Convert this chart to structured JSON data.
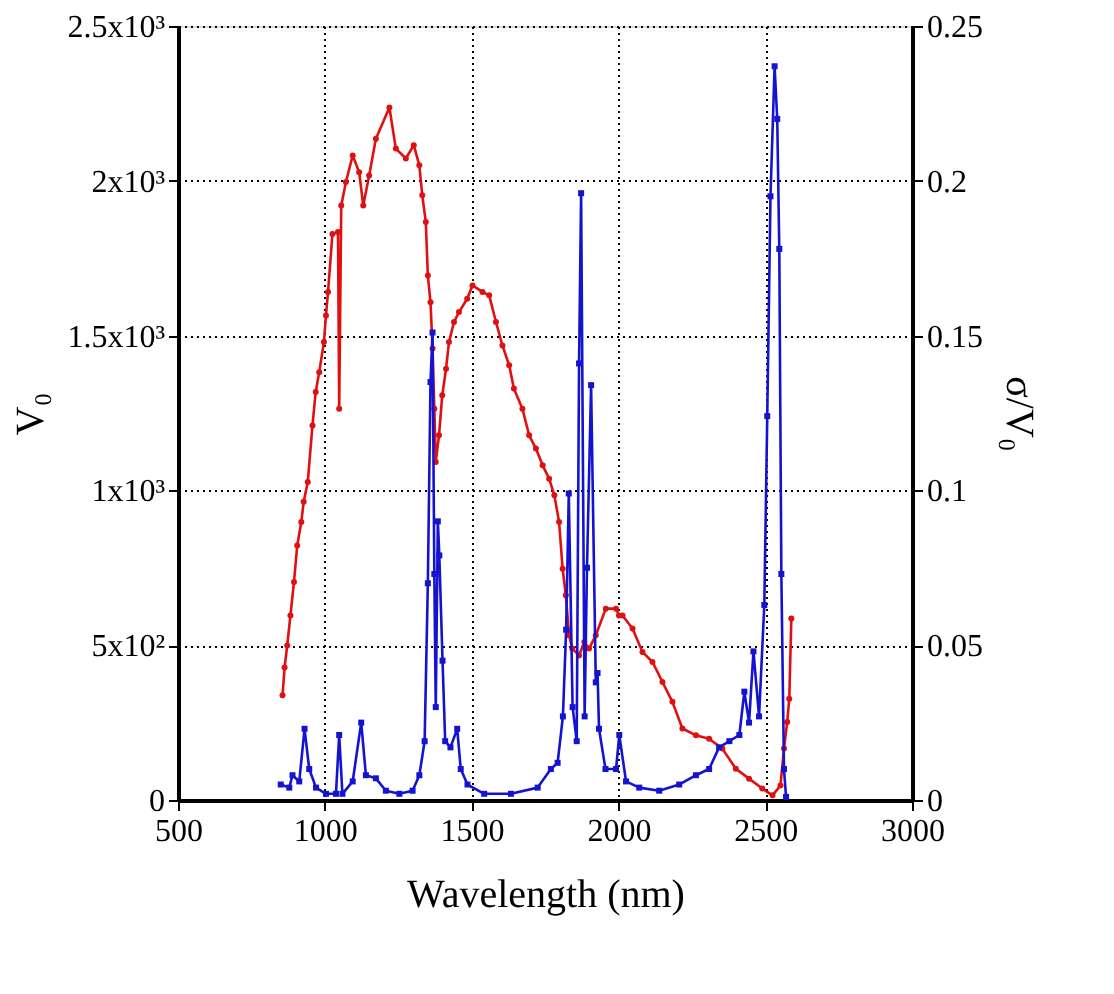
{
  "chart_data": {
    "type": "line",
    "xlabel": "Wavelength (nm)",
    "ylabel": "V₀",
    "y2label": "σ/V₀",
    "xlim": [
      500,
      3000
    ],
    "xticks": [
      500,
      1000,
      1500,
      2000,
      2500,
      3000
    ],
    "ylim": [
      0,
      2500
    ],
    "yticks": [
      {
        "value": 0,
        "label": "0"
      },
      {
        "value": 500,
        "label": "5x10²"
      },
      {
        "value": 1000,
        "label": "1x10³"
      },
      {
        "value": 1500,
        "label": "1.5x10³"
      },
      {
        "value": 2000,
        "label": "2x10³"
      },
      {
        "value": 2500,
        "label": "2.5x10³"
      }
    ],
    "y2lim": [
      0,
      0.25
    ],
    "y2ticks": [
      0,
      0.05,
      0.1,
      0.15,
      0.2,
      0.25
    ],
    "grid": true,
    "line_style": "solid",
    "series": [
      {
        "color": "#e01010",
        "marker": "circle",
        "x": [
          856,
          863,
          872,
          883,
          895,
          906,
          920,
          928,
          942,
          958,
          969,
          981,
          997,
          1004,
          1011,
          1026,
          1045,
          1049,
          1056,
          1072,
          1095,
          1117,
          1131,
          1151,
          1174,
          1220,
          1242,
          1276,
          1303,
          1322,
          1332,
          1344,
          1351,
          1360,
          1367,
          1373,
          1378,
          1389,
          1400,
          1413,
          1423,
          1440,
          1457,
          1485,
          1503,
          1537,
          1560,
          1583,
          1605,
          1628,
          1644,
          1673,
          1696,
          1719,
          1742,
          1764,
          1782,
          1798,
          1810,
          1821,
          1832,
          1843,
          1866,
          1884,
          1900,
          1923,
          1957,
          1992,
          2002,
          2014,
          2048,
          2082,
          2116,
          2150,
          2184,
          2218,
          2264,
          2309,
          2354,
          2400,
          2445,
          2490,
          2525,
          2552,
          2564,
          2575,
          2582,
          2589
        ],
        "values": [
          338,
          428,
          499,
          596,
          704,
          822,
          898,
          963,
          1027,
          1210,
          1318,
          1382,
          1479,
          1565,
          1641,
          1828,
          1835,
          1264,
          1920,
          1996,
          2082,
          2028,
          1920,
          2017,
          2136,
          2237,
          2104,
          2072,
          2115,
          2050,
          1953,
          1867,
          1694,
          1608,
          1458,
          1264,
          1092,
          1178,
          1307,
          1393,
          1479,
          1544,
          1576,
          1619,
          1662,
          1641,
          1630,
          1544,
          1468,
          1404,
          1329,
          1264,
          1178,
          1135,
          1081,
          1038,
          984,
          898,
          747,
          661,
          532,
          489,
          467,
          510,
          489,
          532,
          618,
          618,
          596,
          596,
          554,
          478,
          446,
          381,
          317,
          231,
          209,
          198,
          166,
          101,
          69,
          37,
          15,
          47,
          166,
          252,
          327,
          586
        ]
      },
      {
        "color": "#1414d0",
        "marker": "square",
        "axis": "y2",
        "x": [
          850,
          879,
          890,
          913,
          931,
          947,
          970,
          1004,
          1038,
          1049,
          1060,
          1095,
          1124,
          1140,
          1174,
          1208,
          1254,
          1299,
          1322,
          1340,
          1351,
          1360,
          1367,
          1373,
          1378,
          1385,
          1390,
          1401,
          1410,
          1428,
          1451,
          1463,
          1486,
          1543,
          1634,
          1725,
          1770,
          1793,
          1811,
          1822,
          1831,
          1844,
          1858,
          1866,
          1873,
          1885,
          1893,
          1907,
          1923,
          1929,
          1934,
          1956,
          1992,
          2003,
          2026,
          2071,
          2139,
          2207,
          2264,
          2309,
          2343,
          2378,
          2412,
          2429,
          2445,
          2460,
          2479,
          2497,
          2507,
          2518,
          2532,
          2541,
          2548,
          2555,
          2564,
          2571
        ],
        "values": [
          0.005,
          0.004,
          0.008,
          0.006,
          0.023,
          0.01,
          0.004,
          0.002,
          0.002,
          0.021,
          0.002,
          0.006,
          0.025,
          0.008,
          0.007,
          0.003,
          0.002,
          0.003,
          0.008,
          0.019,
          0.07,
          0.135,
          0.151,
          0.073,
          0.03,
          0.09,
          0.079,
          0.045,
          0.019,
          0.017,
          0.023,
          0.01,
          0.005,
          0.002,
          0.002,
          0.004,
          0.01,
          0.012,
          0.027,
          0.055,
          0.099,
          0.03,
          0.019,
          0.141,
          0.196,
          0.027,
          0.075,
          0.134,
          0.038,
          0.041,
          0.023,
          0.01,
          0.01,
          0.021,
          0.006,
          0.004,
          0.003,
          0.005,
          0.008,
          0.01,
          0.017,
          0.019,
          0.021,
          0.035,
          0.025,
          0.048,
          0.027,
          0.063,
          0.124,
          0.195,
          0.237,
          0.22,
          0.178,
          0.073,
          0.01,
          0.001
        ]
      }
    ]
  }
}
